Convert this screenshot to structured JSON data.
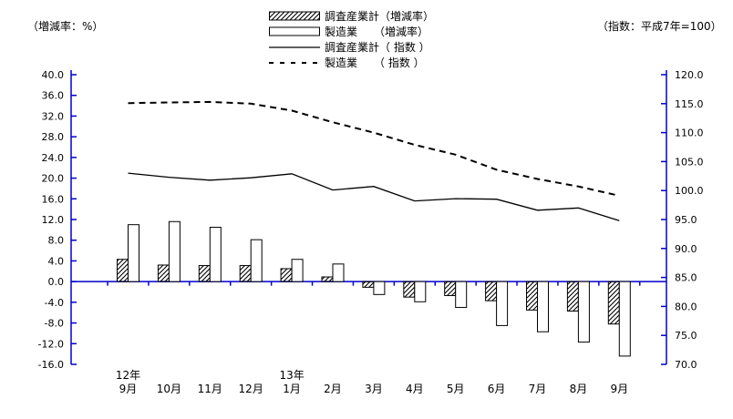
{
  "header": {
    "left_axis_caption": "（増減率：%）",
    "right_axis_caption": "（指数：平成7年=100）"
  },
  "legend": [
    {
      "swatch": "hatched-bar",
      "label": "調査産業計（増減率）"
    },
    {
      "swatch": "white-bar",
      "label": "製造業　　（増減率）"
    },
    {
      "swatch": "solid-line",
      "label": "調査産業計（ 指数 ）"
    },
    {
      "swatch": "dashed-line",
      "label": "製造業　　（ 指数 ）"
    }
  ],
  "chart_data": {
    "type": "bar+line combo",
    "categories": [
      "9月",
      "10月",
      "11月",
      "12月",
      "1月",
      "2月",
      "3月",
      "4月",
      "5月",
      "6月",
      "7月",
      "8月",
      "9月"
    ],
    "year_markers": [
      {
        "index": 0,
        "label": "12年"
      },
      {
        "index": 4,
        "label": "13年"
      }
    ],
    "bar_series": [
      {
        "name": "調査産業計（増減率）",
        "axis": "left",
        "style": "hatched",
        "values": [
          4.3,
          3.2,
          3.1,
          3.1,
          2.5,
          0.9,
          -1.1,
          -3.0,
          -2.7,
          -3.7,
          -5.5,
          -5.7,
          -8.2
        ]
      },
      {
        "name": "製造業（増減率）",
        "axis": "left",
        "style": "white",
        "values": [
          11.0,
          11.6,
          10.5,
          8.1,
          4.3,
          3.4,
          -2.5,
          -3.9,
          -5.0,
          -8.5,
          -9.7,
          -11.7,
          -14.4
        ]
      }
    ],
    "line_series": [
      {
        "name": "調査産業計（指数）",
        "axis": "right",
        "style": "solid",
        "values": [
          103.0,
          102.3,
          101.8,
          102.2,
          102.9,
          100.1,
          100.7,
          98.2,
          98.6,
          98.5,
          96.6,
          97.0,
          94.8
        ]
      },
      {
        "name": "製造業（指数）",
        "axis": "right",
        "style": "dashed",
        "values": [
          115.1,
          115.2,
          115.3,
          115.0,
          113.8,
          111.8,
          110.0,
          107.9,
          106.2,
          103.6,
          102.0,
          100.7,
          99.1
        ]
      }
    ],
    "left_axis": {
      "caption": "（増減率：%）",
      "min": -16,
      "max": 40,
      "step": 4,
      "tick_format": "0.0"
    },
    "right_axis": {
      "caption": "（指数：平成7年=100）",
      "min": 70,
      "max": 120,
      "step": 5,
      "tick_format": "0.0"
    },
    "axis_color": "#0000cc",
    "data_color": "#000000",
    "background": "#ffffff",
    "grid": false,
    "legend_position": "top-center"
  }
}
